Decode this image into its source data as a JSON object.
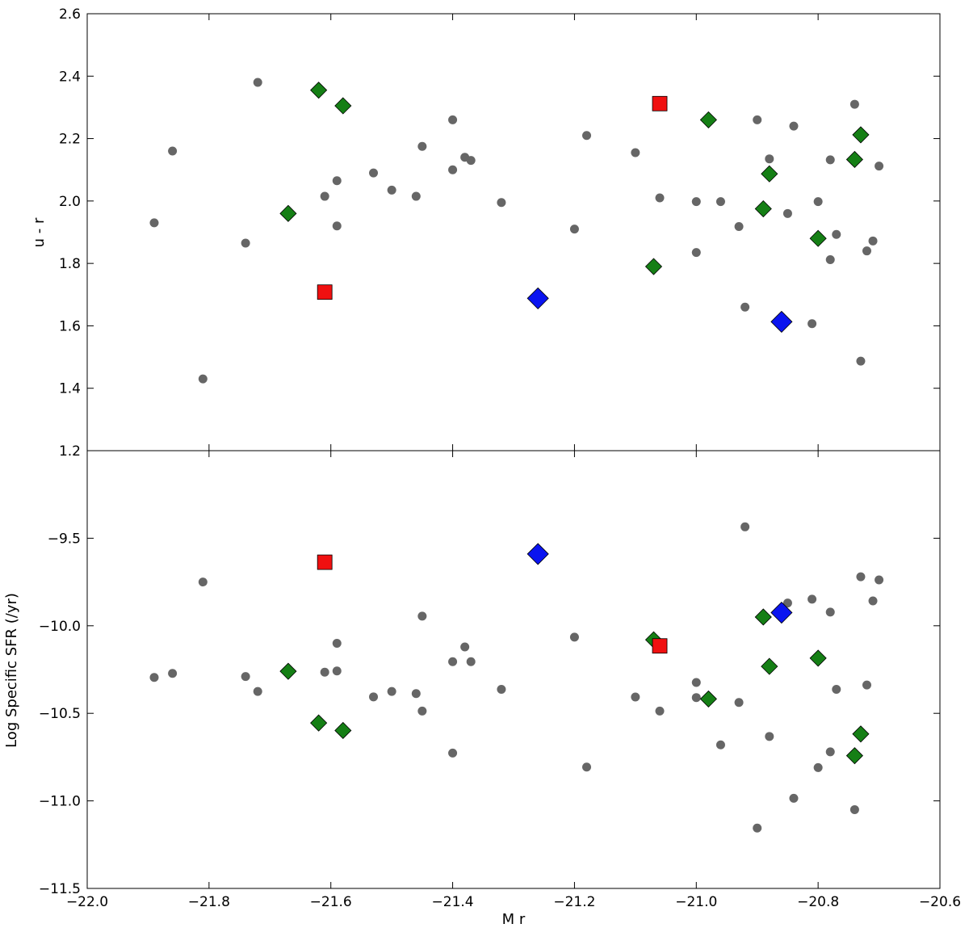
{
  "chart_data": [
    {
      "type": "scatter",
      "panel": "top",
      "xlabel": "",
      "ylabel": "u - r",
      "xlim": [
        -22.0,
        -20.6
      ],
      "ylim": [
        1.2,
        2.6
      ],
      "yticks": [
        1.2,
        1.4,
        1.6,
        1.8,
        2.0,
        2.2,
        2.4,
        2.6
      ],
      "ytick_labels": [
        "1.2",
        "1.4",
        "1.6",
        "1.8",
        "2.0",
        "2.2",
        "2.4",
        "2.6"
      ],
      "grid": false,
      "series": [
        {
          "marker": "circle",
          "color": "#666666",
          "points": [
            [
              -21.89,
              1.93
            ],
            [
              -21.86,
              2.16
            ],
            [
              -21.81,
              1.43
            ],
            [
              -21.74,
              1.865
            ],
            [
              -21.72,
              2.38
            ],
            [
              -21.61,
              2.015
            ],
            [
              -21.59,
              2.065
            ],
            [
              -21.59,
              1.92
            ],
            [
              -21.53,
              2.09
            ],
            [
              -21.5,
              2.035
            ],
            [
              -21.46,
              2.015
            ],
            [
              -21.45,
              2.175
            ],
            [
              -21.4,
              2.26
            ],
            [
              -21.4,
              2.1
            ],
            [
              -21.38,
              2.14
            ],
            [
              -21.37,
              2.13
            ],
            [
              -21.32,
              1.995
            ],
            [
              -21.2,
              1.91
            ],
            [
              -21.18,
              2.21
            ],
            [
              -21.1,
              2.155
            ],
            [
              -21.06,
              2.01
            ],
            [
              -21.0,
              1.998
            ],
            [
              -21.0,
              1.835
            ],
            [
              -20.96,
              1.998
            ],
            [
              -20.93,
              1.918
            ],
            [
              -20.92,
              1.66
            ],
            [
              -20.9,
              2.26
            ],
            [
              -20.88,
              2.135
            ],
            [
              -20.85,
              1.96
            ],
            [
              -20.84,
              2.24
            ],
            [
              -20.81,
              1.607
            ],
            [
              -20.8,
              1.998
            ],
            [
              -20.78,
              2.132
            ],
            [
              -20.78,
              1.812
            ],
            [
              -20.77,
              1.893
            ],
            [
              -20.74,
              2.31
            ],
            [
              -20.73,
              1.487
            ],
            [
              -20.72,
              1.84
            ],
            [
              -20.71,
              1.872
            ],
            [
              -20.7,
              2.112
            ]
          ]
        },
        {
          "marker": "diamond",
          "color": "#157f15",
          "points": [
            [
              -21.67,
              1.96
            ],
            [
              -21.62,
              2.355
            ],
            [
              -21.58,
              2.305
            ],
            [
              -21.07,
              1.79
            ],
            [
              -20.98,
              2.26
            ],
            [
              -20.89,
              1.975
            ],
            [
              -20.88,
              2.087
            ],
            [
              -20.8,
              1.88
            ],
            [
              -20.74,
              2.133
            ],
            [
              -20.73,
              2.212
            ]
          ]
        },
        {
          "marker": "diamond-large",
          "color": "#0a14f0",
          "points": [
            [
              -21.26,
              1.688
            ],
            [
              -20.86,
              1.613
            ]
          ]
        },
        {
          "marker": "square",
          "color": "#f01010",
          "points": [
            [
              -21.61,
              1.708
            ],
            [
              -21.06,
              2.312
            ]
          ]
        }
      ]
    },
    {
      "type": "scatter",
      "panel": "bottom",
      "xlabel": "M r",
      "ylabel": "Log Specific SFR (/yr)",
      "xlim": [
        -22.0,
        -20.6
      ],
      "ylim": [
        -11.5,
        -9.0
      ],
      "xticks": [
        -22.0,
        -21.8,
        -21.6,
        -21.4,
        -21.2,
        -21.0,
        -20.8,
        -20.6
      ],
      "xtick_labels": [
        "−22.0",
        "−21.8",
        "−21.6",
        "−21.4",
        "−21.2",
        "−21.0",
        "−20.8",
        "−20.6"
      ],
      "yticks": [
        -11.5,
        -11.0,
        -10.5,
        -10.0,
        -9.5
      ],
      "ytick_labels": [
        "−11.5",
        "−11.0",
        "−10.5",
        "−10.0",
        "−9.5"
      ],
      "grid": false,
      "series": [
        {
          "marker": "circle",
          "color": "#666666",
          "points": [
            [
              -21.89,
              -10.295
            ],
            [
              -21.86,
              -10.272
            ],
            [
              -21.81,
              -9.75
            ],
            [
              -21.74,
              -10.29
            ],
            [
              -21.72,
              -10.375
            ],
            [
              -21.61,
              -10.265
            ],
            [
              -21.59,
              -10.1
            ],
            [
              -21.59,
              -10.258
            ],
            [
              -21.53,
              -10.406
            ],
            [
              -21.5,
              -10.375
            ],
            [
              -21.46,
              -10.387
            ],
            [
              -21.45,
              -9.945
            ],
            [
              -21.45,
              -10.487
            ],
            [
              -21.4,
              -10.205
            ],
            [
              -21.4,
              -10.727
            ],
            [
              -21.38,
              -10.121
            ],
            [
              -21.37,
              -10.205
            ],
            [
              -21.32,
              -10.363
            ],
            [
              -21.2,
              -10.065
            ],
            [
              -21.18,
              -10.807
            ],
            [
              -21.1,
              -10.407
            ],
            [
              -21.06,
              -10.487
            ],
            [
              -21.0,
              -10.324
            ],
            [
              -21.0,
              -10.41
            ],
            [
              -20.96,
              -10.68
            ],
            [
              -20.93,
              -10.438
            ],
            [
              -20.92,
              -9.435
            ],
            [
              -20.9,
              -11.155
            ],
            [
              -20.88,
              -10.632
            ],
            [
              -20.85,
              -9.87
            ],
            [
              -20.84,
              -10.985
            ],
            [
              -20.81,
              -9.848
            ],
            [
              -20.8,
              -10.81
            ],
            [
              -20.78,
              -9.922
            ],
            [
              -20.78,
              -10.72
            ],
            [
              -20.77,
              -10.363
            ],
            [
              -20.74,
              -11.05
            ],
            [
              -20.73,
              -9.72
            ],
            [
              -20.72,
              -10.338
            ],
            [
              -20.71,
              -9.858
            ],
            [
              -20.7,
              -9.738
            ]
          ]
        },
        {
          "marker": "diamond",
          "color": "#157f15",
          "points": [
            [
              -21.67,
              -10.26
            ],
            [
              -21.62,
              -10.555
            ],
            [
              -21.58,
              -10.598
            ],
            [
              -21.07,
              -10.08
            ],
            [
              -20.98,
              -10.418
            ],
            [
              -20.89,
              -9.95
            ],
            [
              -20.88,
              -10.232
            ],
            [
              -20.8,
              -10.185
            ],
            [
              -20.74,
              -10.742
            ],
            [
              -20.73,
              -10.618
            ]
          ]
        },
        {
          "marker": "diamond-large",
          "color": "#0a14f0",
          "points": [
            [
              -21.26,
              -9.59
            ],
            [
              -20.86,
              -9.925
            ]
          ]
        },
        {
          "marker": "square",
          "color": "#f01010",
          "points": [
            [
              -21.61,
              -9.637
            ],
            [
              -21.06,
              -10.115
            ]
          ]
        }
      ]
    }
  ]
}
